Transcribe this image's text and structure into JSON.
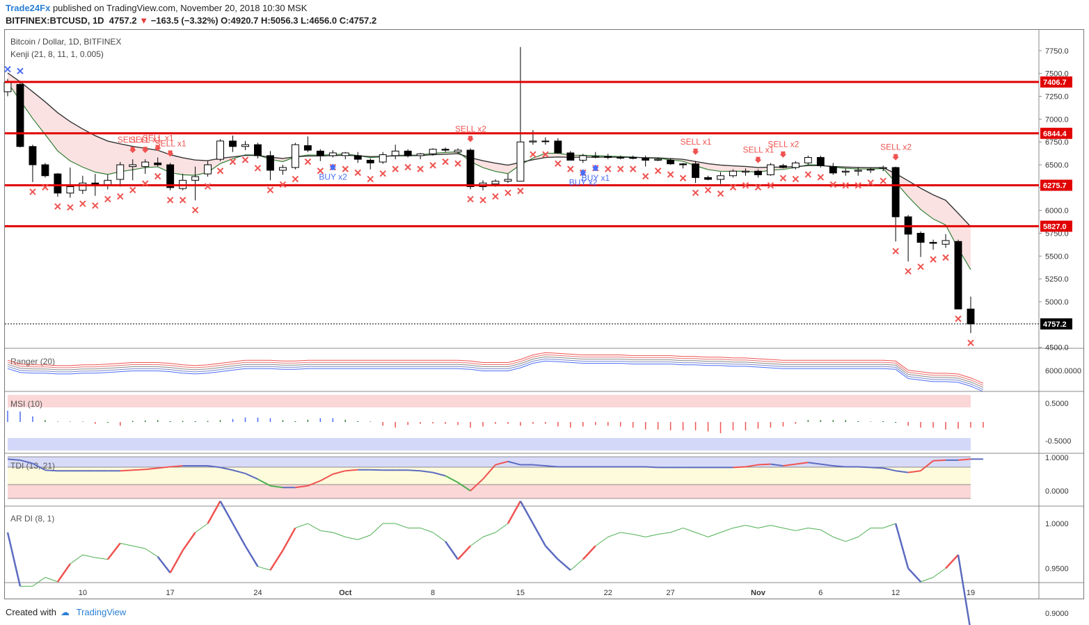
{
  "header": {
    "brand": "Trade24Fx",
    "published": "published on TradingView.com, November 20, 2018 10:30 MSK",
    "symbol": "BITFINEX:BTCUSD, 1D",
    "last": "4757.2",
    "change": "−163.5 (−3.32%)",
    "ohlc": "O:4920.7 H:5056.3 L:4656.0 C:4757.2"
  },
  "footer": {
    "created_with": "Created with",
    "tradingview": "TradingView"
  },
  "colors": {
    "up_fill": "#ffffff",
    "down_fill": "#000000",
    "level": "#e00000",
    "sell": "#ef5350",
    "buy": "#4a6cf7",
    "price_tag": "#000000"
  },
  "chart_data": [
    {
      "type": "candlestick",
      "title": "Bitcoin / Dollar, 1D, BITFINEX",
      "indicator": "Kenji (21, 8, 11, 1, 0.005)",
      "yaxis": {
        "ticks": [
          "7750.0",
          "7500.0",
          "7250.0",
          "7000.0",
          "6750.0",
          "6500.0",
          "6250.0",
          "6000.0",
          "5750.0",
          "5500.0",
          "5250.0",
          "5000.0",
          "4500.0"
        ],
        "ylim": [
          4500,
          7800
        ]
      },
      "xaxis": {
        "tick_labels": [
          "10",
          "17",
          "24",
          "Oct",
          "8",
          "15",
          "22",
          "27",
          "Nov",
          "6",
          "12",
          "19"
        ]
      },
      "candles": [
        {
          "o": 7300,
          "h": 7440,
          "l": 7250,
          "c": 7400
        },
        {
          "o": 7380,
          "h": 7420,
          "l": 6690,
          "c": 6700
        },
        {
          "o": 6700,
          "h": 6720,
          "l": 6310,
          "c": 6500
        },
        {
          "o": 6500,
          "h": 6520,
          "l": 6360,
          "c": 6380
        },
        {
          "o": 6400,
          "h": 6410,
          "l": 6150,
          "c": 6190
        },
        {
          "o": 6190,
          "h": 6470,
          "l": 6140,
          "c": 6260
        },
        {
          "o": 6220,
          "h": 6380,
          "l": 6180,
          "c": 6300
        },
        {
          "o": 6300,
          "h": 6400,
          "l": 6160,
          "c": 6280
        },
        {
          "o": 6280,
          "h": 6390,
          "l": 6230,
          "c": 6330
        },
        {
          "o": 6340,
          "h": 6530,
          "l": 6260,
          "c": 6500
        },
        {
          "o": 6480,
          "h": 6560,
          "l": 6330,
          "c": 6500
        },
        {
          "o": 6480,
          "h": 6560,
          "l": 6400,
          "c": 6530
        },
        {
          "o": 6520,
          "h": 6580,
          "l": 6480,
          "c": 6500
        },
        {
          "o": 6500,
          "h": 6520,
          "l": 6220,
          "c": 6250
        },
        {
          "o": 6240,
          "h": 6400,
          "l": 6220,
          "c": 6330
        },
        {
          "o": 6330,
          "h": 6480,
          "l": 6110,
          "c": 6370
        },
        {
          "o": 6400,
          "h": 6540,
          "l": 6370,
          "c": 6500
        },
        {
          "o": 6560,
          "h": 6780,
          "l": 6540,
          "c": 6760
        },
        {
          "o": 6760,
          "h": 6820,
          "l": 6640,
          "c": 6700
        },
        {
          "o": 6700,
          "h": 6760,
          "l": 6660,
          "c": 6720
        },
        {
          "o": 6720,
          "h": 6740,
          "l": 6570,
          "c": 6600
        },
        {
          "o": 6600,
          "h": 6650,
          "l": 6330,
          "c": 6440
        },
        {
          "o": 6440,
          "h": 6500,
          "l": 6390,
          "c": 6470
        },
        {
          "o": 6470,
          "h": 6740,
          "l": 6450,
          "c": 6720
        },
        {
          "o": 6710,
          "h": 6810,
          "l": 6640,
          "c": 6660
        },
        {
          "o": 6650,
          "h": 6670,
          "l": 6540,
          "c": 6600
        },
        {
          "o": 6600,
          "h": 6660,
          "l": 6580,
          "c": 6630
        },
        {
          "o": 6600,
          "h": 6640,
          "l": 6560,
          "c": 6630
        },
        {
          "o": 6600,
          "h": 6640,
          "l": 6520,
          "c": 6560
        },
        {
          "o": 6550,
          "h": 6570,
          "l": 6450,
          "c": 6520
        },
        {
          "o": 6530,
          "h": 6640,
          "l": 6510,
          "c": 6610
        },
        {
          "o": 6600,
          "h": 6720,
          "l": 6560,
          "c": 6650
        },
        {
          "o": 6650,
          "h": 6670,
          "l": 6580,
          "c": 6600
        },
        {
          "o": 6600,
          "h": 6630,
          "l": 6560,
          "c": 6620
        },
        {
          "o": 6620,
          "h": 6680,
          "l": 6600,
          "c": 6670
        },
        {
          "o": 6670,
          "h": 6690,
          "l": 6640,
          "c": 6660
        },
        {
          "o": 6640,
          "h": 6680,
          "l": 6620,
          "c": 6660
        },
        {
          "o": 6660,
          "h": 6680,
          "l": 6230,
          "c": 6260
        },
        {
          "o": 6260,
          "h": 6330,
          "l": 6220,
          "c": 6300
        },
        {
          "o": 6290,
          "h": 6340,
          "l": 6260,
          "c": 6320
        },
        {
          "o": 6320,
          "h": 6400,
          "l": 6300,
          "c": 6340
        },
        {
          "o": 6320,
          "h": 7790,
          "l": 6320,
          "c": 6750
        },
        {
          "o": 6750,
          "h": 6880,
          "l": 6720,
          "c": 6760
        },
        {
          "o": 6760,
          "h": 6800,
          "l": 6720,
          "c": 6760
        },
        {
          "o": 6760,
          "h": 6790,
          "l": 6620,
          "c": 6630
        },
        {
          "o": 6630,
          "h": 6650,
          "l": 6560,
          "c": 6550
        },
        {
          "o": 6550,
          "h": 6620,
          "l": 6520,
          "c": 6600
        },
        {
          "o": 6590,
          "h": 6640,
          "l": 6570,
          "c": 6590
        },
        {
          "o": 6590,
          "h": 6620,
          "l": 6560,
          "c": 6580
        },
        {
          "o": 6580,
          "h": 6600,
          "l": 6560,
          "c": 6580
        },
        {
          "o": 6580,
          "h": 6600,
          "l": 6560,
          "c": 6570
        },
        {
          "o": 6570,
          "h": 6600,
          "l": 6480,
          "c": 6550
        },
        {
          "o": 6550,
          "h": 6580,
          "l": 6540,
          "c": 6560
        },
        {
          "o": 6550,
          "h": 6570,
          "l": 6500,
          "c": 6510
        },
        {
          "o": 6510,
          "h": 6520,
          "l": 6460,
          "c": 6500
        },
        {
          "o": 6510,
          "h": 6540,
          "l": 6300,
          "c": 6360
        },
        {
          "o": 6360,
          "h": 6380,
          "l": 6330,
          "c": 6340
        },
        {
          "o": 6340,
          "h": 6420,
          "l": 6290,
          "c": 6380
        },
        {
          "o": 6380,
          "h": 6450,
          "l": 6360,
          "c": 6430
        },
        {
          "o": 6420,
          "h": 6460,
          "l": 6380,
          "c": 6430
        },
        {
          "o": 6430,
          "h": 6450,
          "l": 6360,
          "c": 6390
        },
        {
          "o": 6390,
          "h": 6520,
          "l": 6380,
          "c": 6500
        },
        {
          "o": 6490,
          "h": 6510,
          "l": 6460,
          "c": 6470
        },
        {
          "o": 6470,
          "h": 6540,
          "l": 6450,
          "c": 6520
        },
        {
          "o": 6520,
          "h": 6600,
          "l": 6500,
          "c": 6580
        },
        {
          "o": 6580,
          "h": 6600,
          "l": 6470,
          "c": 6490
        },
        {
          "o": 6480,
          "h": 6520,
          "l": 6390,
          "c": 6410
        },
        {
          "o": 6420,
          "h": 6460,
          "l": 6380,
          "c": 6430
        },
        {
          "o": 6430,
          "h": 6470,
          "l": 6380,
          "c": 6440
        },
        {
          "o": 6440,
          "h": 6470,
          "l": 6410,
          "c": 6450
        },
        {
          "o": 6460,
          "h": 6490,
          "l": 6430,
          "c": 6470
        },
        {
          "o": 6470,
          "h": 6480,
          "l": 5660,
          "c": 5930
        },
        {
          "o": 5930,
          "h": 5950,
          "l": 5440,
          "c": 5740
        },
        {
          "o": 5750,
          "h": 5770,
          "l": 5490,
          "c": 5650
        },
        {
          "o": 5650,
          "h": 5680,
          "l": 5570,
          "c": 5640
        },
        {
          "o": 5630,
          "h": 5740,
          "l": 5590,
          "c": 5670
        },
        {
          "o": 5660,
          "h": 5680,
          "l": 4920,
          "c": 4920
        },
        {
          "o": 4920,
          "h": 5056,
          "l": 4656,
          "c": 4757
        }
      ],
      "levels": [
        "7406.7",
        "6844.4",
        "6275.7",
        "5827.0"
      ],
      "last_price_tag": "4757.2",
      "buy_labels": [
        {
          "i": 26,
          "text": "BUY x2"
        },
        {
          "i": 46,
          "text": "BUY x2"
        },
        {
          "i": 47,
          "text": "BUY x1"
        }
      ],
      "sell_labels": [
        {
          "i": 10,
          "text": "SELL x1"
        },
        {
          "i": 11,
          "text": "SELL x1"
        },
        {
          "i": 12,
          "text": "SELL x1"
        },
        {
          "i": 13,
          "text": "SELL x1"
        },
        {
          "i": 37,
          "text": "SELL x2"
        },
        {
          "i": 55,
          "text": "SELL x1"
        },
        {
          "i": 60,
          "text": "SELL x1"
        },
        {
          "i": 62,
          "text": "SELL x2"
        },
        {
          "i": 71,
          "text": "SELL x2"
        }
      ]
    },
    {
      "type": "line",
      "title": "Ranger (20)",
      "yaxis": {
        "ticks": [
          "6000.0000"
        ]
      },
      "series": [
        {
          "values": [
            6080,
            6030,
            6020,
            6020,
            6010,
            6010,
            6020,
            6020,
            6030,
            6040,
            6050,
            6050,
            6050,
            6040,
            6020,
            6010,
            6020,
            6040,
            6060,
            6080,
            6080,
            6080,
            6070,
            6070,
            6080,
            6080,
            6080,
            6080,
            6080,
            6080,
            6080,
            6080,
            6080,
            6080,
            6080,
            6080,
            6080,
            6070,
            6050,
            6050,
            6050,
            6090,
            6150,
            6180,
            6170,
            6160,
            6150,
            6150,
            6150,
            6150,
            6140,
            6140,
            6140,
            6140,
            6130,
            6130,
            6120,
            6120,
            6110,
            6110,
            6100,
            6090,
            6080,
            6080,
            6080,
            6080,
            6080,
            6080,
            6080,
            6080,
            6080,
            6070,
            5950,
            5930,
            5910,
            5910,
            5900,
            5850,
            5780
          ]
        }
      ]
    },
    {
      "type": "bar",
      "title": "MSI (10)",
      "yaxis": {
        "ticks": [
          "0.5000",
          "-0.5000"
        ]
      },
      "values": [
        0.3,
        0.28,
        0.15,
        0.05,
        0.01,
        0.01,
        0.01,
        -0.05,
        -0.02,
        -0.1,
        0.03,
        0.04,
        0.05,
        0.02,
        0.03,
        0.02,
        0.03,
        0.05,
        0.08,
        0.12,
        0.12,
        0.1,
        0.05,
        0.02,
        0.06,
        0.1,
        0.1,
        0.06,
        0.02,
        0,
        -0.1,
        -0.15,
        -0.08,
        -0.05,
        -0.04,
        -0.05,
        -0.08,
        -0.15,
        -0.12,
        -0.05,
        -0.05,
        -0.1,
        -0.05,
        -0.05,
        -0.12,
        -0.15,
        -0.12,
        -0.08,
        -0.1,
        -0.12,
        -0.15,
        -0.2,
        -0.2,
        -0.22,
        -0.22,
        -0.22,
        -0.25,
        -0.3,
        -0.22,
        -0.22,
        -0.18,
        -0.15,
        -0.12,
        -0.05,
        0.05,
        0.05,
        0.05,
        0.05,
        0.02,
        0.01,
        0.02,
        -0.02,
        -0.1,
        -0.15,
        -0.15,
        -0.2,
        -0.18,
        -0.15,
        -0.15
      ]
    },
    {
      "type": "line",
      "title": "TDI (13, 21)",
      "yaxis": {
        "ticks": [
          "1.0000",
          "0.0000"
        ]
      },
      "values": [
        0.95,
        0.92,
        0.82,
        0.62,
        0.6,
        0.6,
        0.6,
        0.6,
        0.6,
        0.6,
        0.62,
        0.64,
        0.68,
        0.72,
        0.75,
        0.75,
        0.75,
        0.7,
        0.62,
        0.52,
        0.35,
        0.15,
        0.1,
        0.1,
        0.15,
        0.3,
        0.5,
        0.6,
        0.63,
        0.63,
        0.62,
        0.62,
        0.62,
        0.6,
        0.55,
        0.45,
        0.25,
        0.0,
        0.35,
        0.78,
        0.88,
        0.78,
        0.78,
        0.75,
        0.72,
        0.72,
        0.72,
        0.72,
        0.72,
        0.72,
        0.72,
        0.72,
        0.7,
        0.7,
        0.7,
        0.7,
        0.7,
        0.7,
        0.7,
        0.72,
        0.78,
        0.8,
        0.75,
        0.8,
        0.85,
        0.8,
        0.75,
        0.72,
        0.72,
        0.7,
        0.68,
        0.6,
        0.55,
        0.6,
        0.9,
        0.92,
        0.92,
        0.95,
        0.95
      ]
    },
    {
      "type": "line",
      "title": "AR DI (8, 1)",
      "yaxis": {
        "ticks": [
          "1.0000",
          "0.9500",
          "0.9000"
        ]
      },
      "values": [
        0.99,
        0.93,
        0.93,
        0.94,
        0.935,
        0.955,
        0.965,
        0.962,
        0.96,
        0.978,
        0.975,
        0.972,
        0.963,
        0.945,
        0.97,
        0.99,
        1.0,
        1.025,
        1.0,
        0.975,
        0.952,
        0.948,
        0.97,
        0.995,
        1.0,
        0.992,
        0.99,
        0.985,
        0.982,
        0.987,
        1.0,
        1.0,
        0.995,
        0.995,
        0.99,
        0.98,
        0.96,
        0.975,
        0.985,
        0.99,
        1.0,
        1.025,
        1.0,
        0.975,
        0.96,
        0.948,
        0.96,
        0.975,
        0.985,
        0.99,
        0.988,
        0.985,
        0.988,
        0.99,
        0.995,
        0.99,
        0.985,
        0.99,
        0.995,
        0.998,
        0.995,
        0.998,
        0.995,
        0.992,
        0.995,
        0.993,
        0.985,
        0.98,
        0.985,
        0.995,
        0.995,
        1.0,
        0.95,
        0.935,
        0.94,
        0.95,
        0.965,
        0.88,
        0.885
      ]
    }
  ]
}
